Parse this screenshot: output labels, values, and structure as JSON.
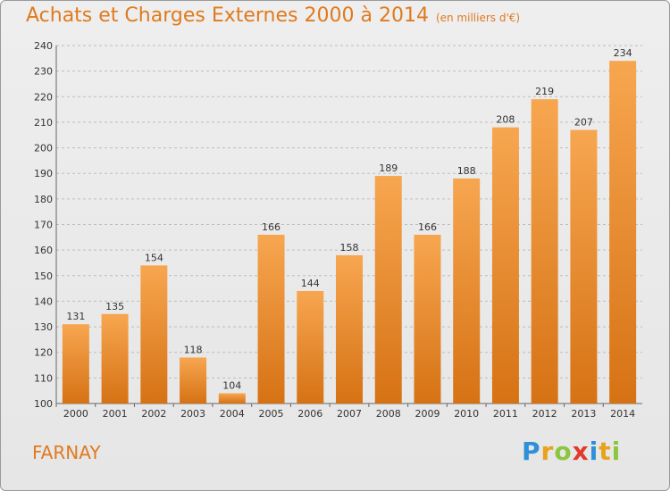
{
  "title": "Achats et Charges Externes 2000 à 2014",
  "unit_label": "(en milliers d'€)",
  "commune": "FARNAY",
  "logo": {
    "letters": [
      {
        "ch": "P",
        "color": "#2f8fd8"
      },
      {
        "ch": "r",
        "color": "#e8a21c"
      },
      {
        "ch": "o",
        "color": "#8cc63f"
      },
      {
        "ch": "x",
        "color": "#e23b2c"
      },
      {
        "ch": "i",
        "color": "#2f8fd8"
      },
      {
        "ch": "t",
        "color": "#e8a21c"
      },
      {
        "ch": "i",
        "color": "#8cc63f"
      }
    ]
  },
  "colors": {
    "bar_top": "#f7a650",
    "bar_bottom": "#d67214",
    "accent": "#e07a1e"
  },
  "chart_data": {
    "type": "bar",
    "title": "Achats et Charges Externes 2000 à 2014",
    "subtitle": "(en milliers d'€)",
    "categories": [
      "2000",
      "2001",
      "2002",
      "2003",
      "2004",
      "2005",
      "2006",
      "2007",
      "2008",
      "2009",
      "2010",
      "2011",
      "2012",
      "2013",
      "2014"
    ],
    "values": [
      131,
      135,
      154,
      118,
      104,
      166,
      144,
      158,
      189,
      166,
      188,
      208,
      219,
      207,
      234
    ],
    "ylim": [
      100,
      240
    ],
    "yticks": [
      100,
      110,
      120,
      130,
      140,
      150,
      160,
      170,
      180,
      190,
      200,
      210,
      220,
      230,
      240
    ],
    "grid": true,
    "xlabel": "",
    "ylabel": ""
  }
}
